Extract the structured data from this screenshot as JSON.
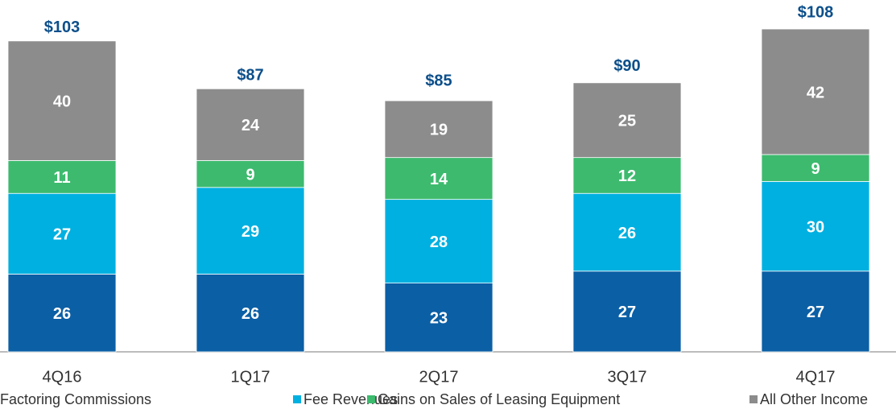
{
  "chart_data": {
    "type": "stacked_bar",
    "categories": [
      "4Q16",
      "1Q17",
      "2Q17",
      "3Q17",
      "4Q17"
    ],
    "series": [
      {
        "name": "Factoring Commissions",
        "color": "#0b5fa5",
        "values": [
          26,
          26,
          23,
          27,
          27
        ]
      },
      {
        "name": "Fee Revenues",
        "color": "#00b0e0",
        "values": [
          27,
          29,
          28,
          26,
          30
        ]
      },
      {
        "name": "Gains on Sales of Leasing Equipment",
        "color": "#3dba6e",
        "values": [
          11,
          9,
          14,
          12,
          9
        ]
      },
      {
        "name": "All Other Income",
        "color": "#8c8c8c",
        "values": [
          40,
          24,
          19,
          25,
          42
        ]
      }
    ],
    "totals": [
      103,
      87,
      85,
      90,
      108
    ],
    "total_labels": [
      "$103",
      "$87",
      "$85",
      "$90",
      "$108"
    ]
  }
}
